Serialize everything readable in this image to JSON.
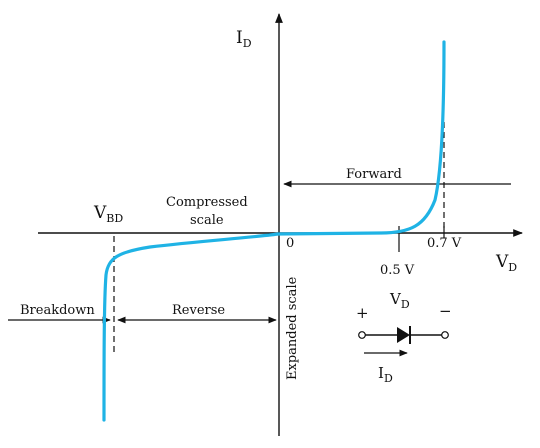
{
  "axes": {
    "y_label": "I",
    "y_label_sub": "D",
    "x_label": "V",
    "x_label_sub": "D",
    "origin_label": "0"
  },
  "ticks": {
    "forward_knee_label": "0.5 V",
    "forward_on_label": "0.7 V"
  },
  "regions": {
    "forward_label": "Forward",
    "reverse_label": "Reverse",
    "breakdown_label": "Breakdown",
    "compressed_line1": "Compressed",
    "compressed_line2": "scale",
    "expanded_label": "Expanded scale"
  },
  "breakdown_voltage": {
    "label": "V",
    "label_sub": "BD"
  },
  "diode_symbol": {
    "voltage_label": "V",
    "voltage_sub": "D",
    "plus_sign": "+",
    "minus_sign": "−",
    "current_label": "I",
    "current_sub": "D"
  },
  "colors": {
    "curve": "#1fb3e5",
    "ink": "#111111"
  }
}
